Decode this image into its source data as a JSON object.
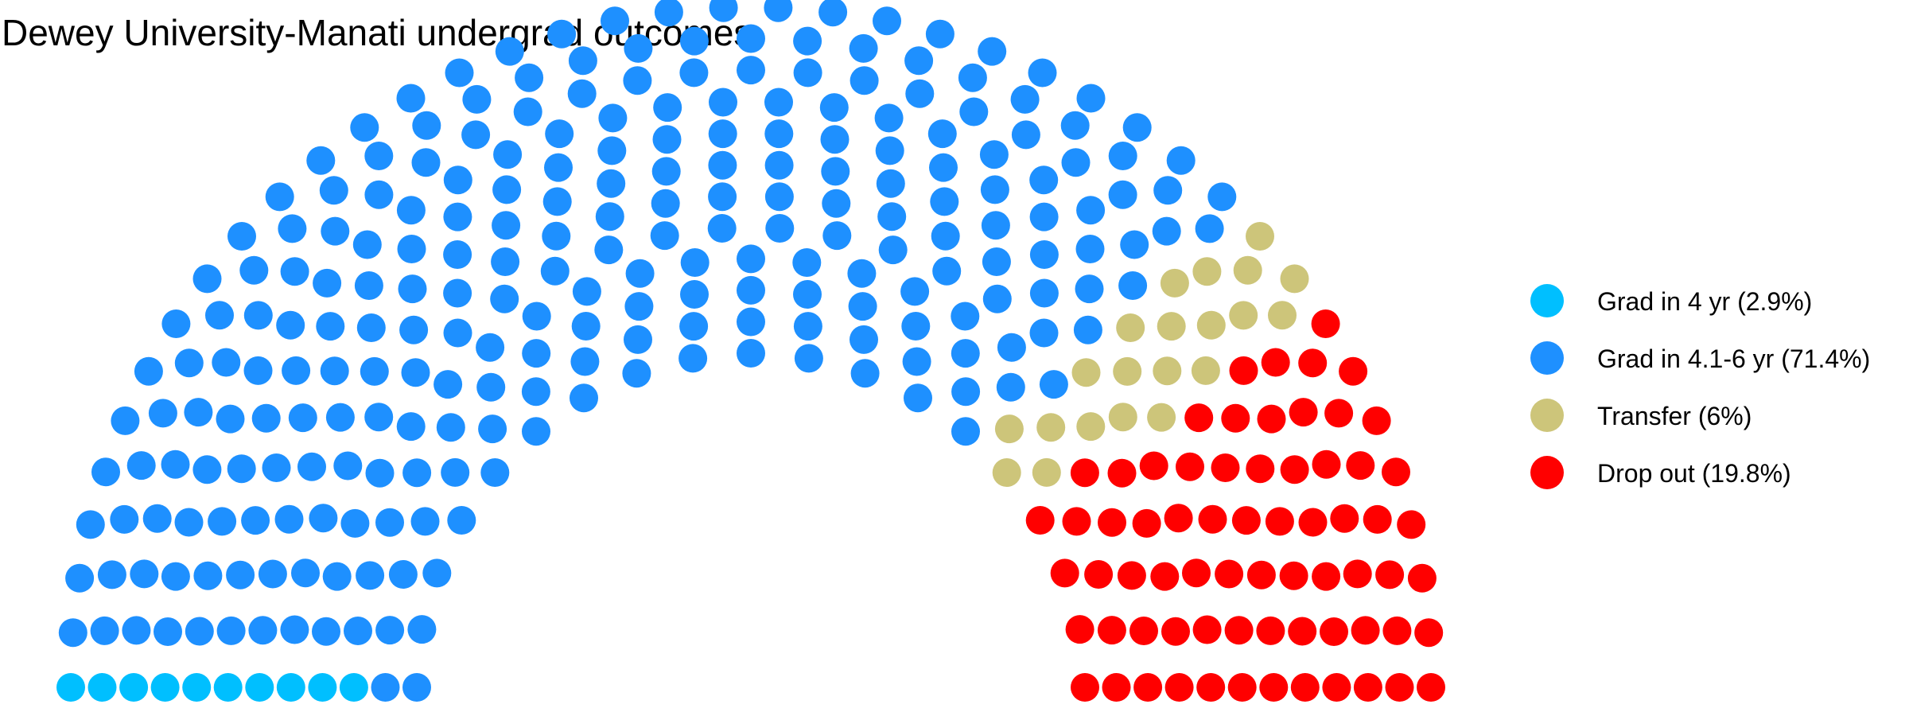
{
  "chart_data": {
    "type": "parliament",
    "title": "Dewey University-Manati undergrad outcomes",
    "total": 350,
    "rows": 12,
    "series": [
      {
        "name": "Grad in 4 yr (2.9%)",
        "count": 10,
        "color": "#00bfff"
      },
      {
        "name": "Grad in 4.1-6 yr (71.4%)",
        "count": 250,
        "color": "#1e90ff"
      },
      {
        "name": "Transfer (6%)",
        "count": 21,
        "color": "#cdc57a"
      },
      {
        "name": "Drop out (19.8%)",
        "count": 69,
        "color": "#ff0000"
      }
    ],
    "legend_position": "right"
  }
}
